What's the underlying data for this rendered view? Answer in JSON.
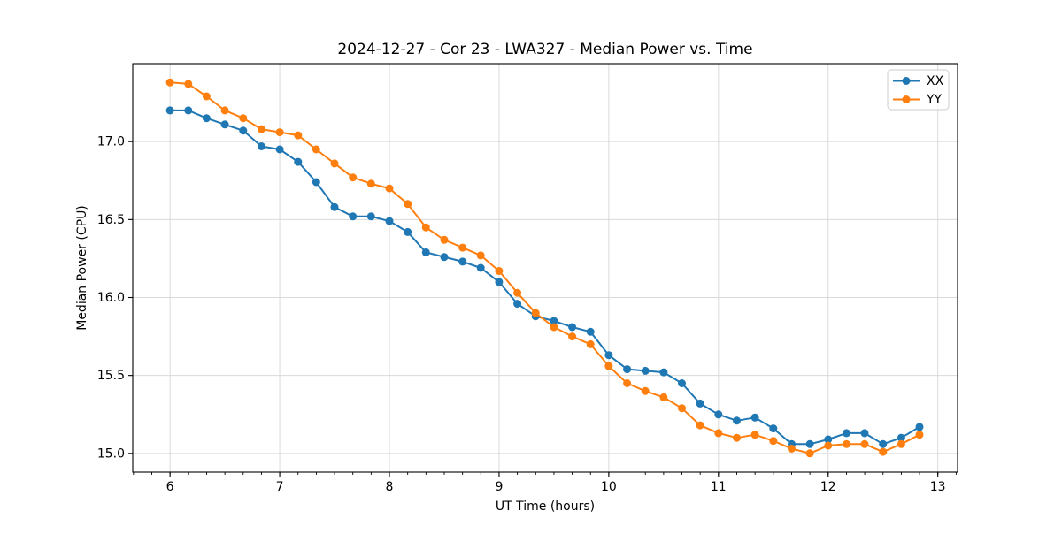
{
  "figure": {
    "background": "#ffffff"
  },
  "chart_data": {
    "type": "line",
    "title": "2024-12-27 - Cor 23 - LWA327 - Median Power vs. Time",
    "xlabel": "UT Time (hours)",
    "ylabel": "Median Power (CPU)",
    "xlim": [
      5.66,
      13.18
    ],
    "ylim": [
      14.88,
      17.5
    ],
    "x_major_ticks": [
      6,
      7,
      8,
      9,
      10,
      11,
      12,
      13
    ],
    "y_major_ticks": [
      15.0,
      15.5,
      16.0,
      16.5,
      17.0
    ],
    "x_minor_tick_step": 0.16667,
    "grid": true,
    "grid_color": "#d9d9d9",
    "spine_color": "#000000",
    "legend": {
      "position": "upper right",
      "entries": [
        {
          "label": "XX",
          "color": "#1f77b4"
        },
        {
          "label": "YY",
          "color": "#ff7f0e"
        }
      ]
    },
    "x": [
      6.0,
      6.167,
      6.333,
      6.5,
      6.667,
      6.833,
      7.0,
      7.167,
      7.333,
      7.5,
      7.667,
      7.833,
      8.0,
      8.167,
      8.333,
      8.5,
      8.667,
      8.833,
      9.0,
      9.167,
      9.333,
      9.5,
      9.667,
      9.833,
      10.0,
      10.167,
      10.333,
      10.5,
      10.667,
      10.833,
      11.0,
      11.167,
      11.333,
      11.5,
      11.667,
      11.833,
      12.0,
      12.167,
      12.333,
      12.5,
      12.667,
      12.833
    ],
    "series": [
      {
        "name": "XX",
        "color": "#1f77b4",
        "marker": "circle",
        "values": [
          17.2,
          17.2,
          17.15,
          17.11,
          17.07,
          16.97,
          16.95,
          16.87,
          16.74,
          16.58,
          16.52,
          16.52,
          16.49,
          16.42,
          16.29,
          16.26,
          16.23,
          16.19,
          16.1,
          15.96,
          15.88,
          15.85,
          15.81,
          15.78,
          15.63,
          15.54,
          15.53,
          15.52,
          15.45,
          15.32,
          15.25,
          15.21,
          15.23,
          15.16,
          15.06,
          15.06,
          15.09,
          15.13,
          15.13,
          15.06,
          15.1,
          15.17
        ]
      },
      {
        "name": "YY",
        "color": "#ff7f0e",
        "marker": "circle",
        "values": [
          17.38,
          17.37,
          17.29,
          17.2,
          17.15,
          17.08,
          17.06,
          17.04,
          16.95,
          16.86,
          16.77,
          16.73,
          16.7,
          16.6,
          16.45,
          16.37,
          16.32,
          16.27,
          16.17,
          16.03,
          15.9,
          15.81,
          15.75,
          15.7,
          15.56,
          15.45,
          15.4,
          15.36,
          15.29,
          15.18,
          15.13,
          15.1,
          15.12,
          15.08,
          15.03,
          15.0,
          15.05,
          15.06,
          15.06,
          15.01,
          15.06,
          15.12
        ]
      }
    ]
  }
}
